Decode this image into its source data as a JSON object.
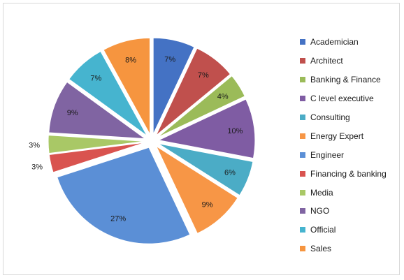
{
  "chart_data": {
    "type": "pie",
    "title": "",
    "legend_position": "right",
    "categories": [
      "Academician",
      "Architect",
      "Banking & Finance",
      "C level executive",
      "Consulting",
      "Energy Expert",
      "Engineer",
      "Financing & banking",
      "Media",
      "NGO",
      "Official",
      "Sales"
    ],
    "values": [
      7,
      7,
      4,
      10,
      6,
      9,
      27,
      3,
      3,
      9,
      7,
      8
    ],
    "labels": [
      "7%",
      "7%",
      "4%",
      "10%",
      "6%",
      "9%",
      "27%",
      "3%",
      "3%",
      "9%",
      "7%",
      "8%"
    ],
    "colors": [
      "#4472c4",
      "#c0504d",
      "#9bbb59",
      "#7f5ca3",
      "#4bacc6",
      "#f79646",
      "#5b8fd6",
      "#d9534f",
      "#a9c866",
      "#8064a2",
      "#46b4cf",
      "#f6953f"
    ]
  }
}
